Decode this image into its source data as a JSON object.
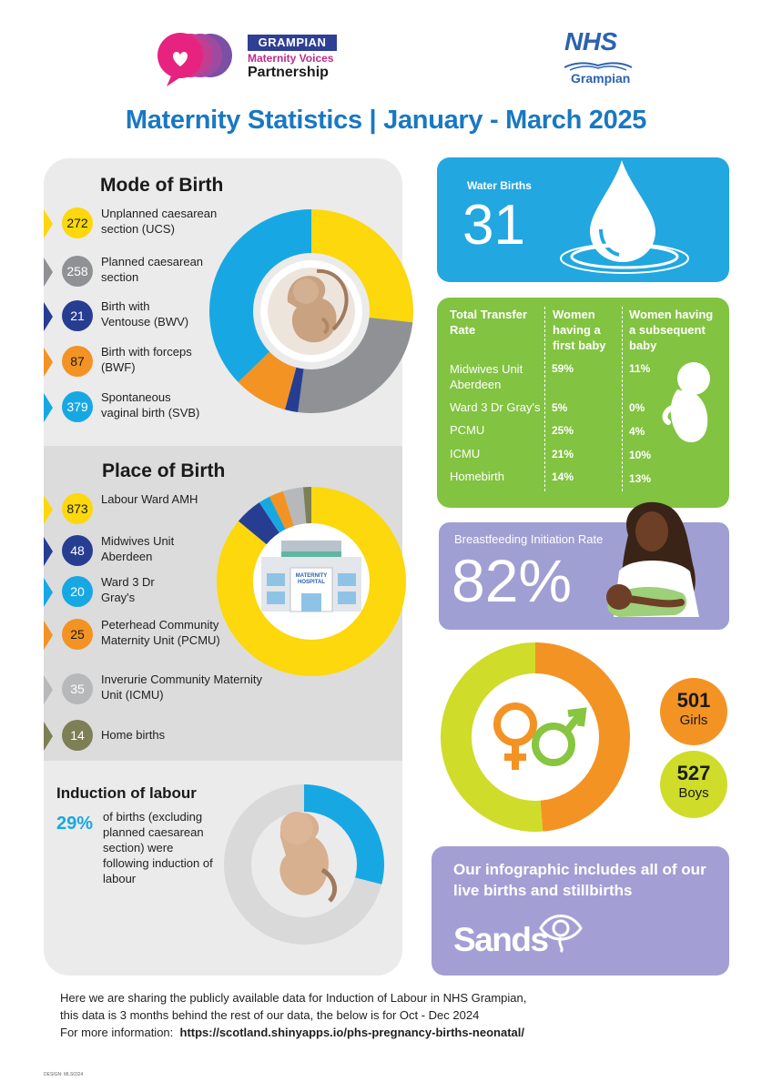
{
  "header": {
    "logo_line1": "GRAMPIAN",
    "logo_line2": "Maternity Voices",
    "logo_line3": "Partnership",
    "nhs_word": "NHS",
    "nhs_region": "Grampian",
    "title": "Maternity Statistics | January - March 2025"
  },
  "mode_of_birth": {
    "title": "Mode of Birth",
    "items": [
      {
        "value": "272",
        "label": "Unplanned caesarean section (UCS)",
        "color": "#fcd80c"
      },
      {
        "value": "258",
        "label": "Planned caesarean section",
        "color": "#8f9194"
      },
      {
        "value": "21",
        "label": "Birth with Ventouse (BWV)",
        "color": "#273d92"
      },
      {
        "value": "87",
        "label": "Birth with forceps (BWF)",
        "color": "#f39324"
      },
      {
        "value": "379",
        "label": "Spontaneous vaginal birth (SVB)",
        "color": "#17a8e3"
      }
    ]
  },
  "place_of_birth": {
    "title": "Place of Birth",
    "hospital_sign": "MATERNITY HOSPITAL",
    "items": [
      {
        "value": "873",
        "label": "Labour Ward AMH",
        "color": "#fcd80c"
      },
      {
        "value": "48",
        "label": "Midwives Unit Aberdeen",
        "color": "#273d92"
      },
      {
        "value": "20",
        "label": "Ward 3 Dr Gray's",
        "color": "#17a8e3"
      },
      {
        "value": "25",
        "label": "Peterhead Community Maternity Unit (PCMU)",
        "color": "#f39324"
      },
      {
        "value": "35",
        "label": "Inverurie Community Maternity Unit (ICMU)",
        "color": "#b7b8ba"
      },
      {
        "value": "14",
        "label": "Home births",
        "color": "#7d7f55"
      }
    ]
  },
  "induction": {
    "title": "Induction of labour",
    "percent": "29%",
    "text": "of births (excluding planned caesarean section) were following induction of labour",
    "rate": 29
  },
  "water_births": {
    "label": "Water Births",
    "value": "31"
  },
  "transfer": {
    "title": "Total Transfer Rate",
    "col1": "Women having a first baby",
    "col2": "Women having a subsequent baby",
    "rows": [
      {
        "unit": "Midwives Unit Aberdeen",
        "first": "59%",
        "subsequent": "11%"
      },
      {
        "unit": "Ward 3 Dr Gray's",
        "first": "5%",
        "subsequent": "0%"
      },
      {
        "unit": "PCMU",
        "first": "25%",
        "subsequent": "4%"
      },
      {
        "unit": "ICMU",
        "first": "21%",
        "subsequent": "10%"
      },
      {
        "unit": "Homebirth",
        "first": "14%",
        "subsequent": "13%"
      }
    ]
  },
  "breastfeeding": {
    "label": "Breastfeeding Initiation Rate",
    "value": "82%"
  },
  "sex": {
    "girls_value": "501",
    "girls_label": "Girls",
    "boys_value": "527",
    "boys_label": "Boys",
    "girls_color": "#f39324",
    "boys_color": "#cfdc2a"
  },
  "sands": {
    "text": "Our infographic includes all of our live births and stillbirths",
    "logo": "Sands"
  },
  "footer": {
    "line1": "Here we are sharing the publicly available data for Induction of Labour in NHS Grampian,",
    "line2": "this data is 3 months behind the rest of our data, the below is for Oct - Dec 2024",
    "line3": "For more information:",
    "link": "https://scotland.shinyapps.io/phs-pregnancy-births-neonatal/",
    "design_code": "DESIGN: MLS0324"
  },
  "chart_data": [
    {
      "type": "pie",
      "title": "Mode of Birth",
      "categories": [
        "Unplanned caesarean section (UCS)",
        "Planned caesarean section",
        "Birth with Ventouse (BWV)",
        "Birth with forceps (BWF)",
        "Spontaneous vaginal birth (SVB)"
      ],
      "values": [
        272,
        258,
        21,
        87,
        379
      ],
      "colors": [
        "#fcd80c",
        "#8f9194",
        "#273d92",
        "#f39324",
        "#17a8e3"
      ]
    },
    {
      "type": "pie",
      "title": "Place of Birth",
      "categories": [
        "Labour Ward AMH",
        "Midwives Unit Aberdeen",
        "Ward 3 Dr Gray's",
        "Peterhead Community Maternity Unit (PCMU)",
        "Inverurie Community Maternity Unit (ICMU)",
        "Home births"
      ],
      "values": [
        873,
        48,
        20,
        25,
        35,
        14
      ],
      "colors": [
        "#fcd80c",
        "#273d92",
        "#17a8e3",
        "#f39324",
        "#b7b8ba",
        "#7d7f55"
      ]
    },
    {
      "type": "pie",
      "title": "Induction of labour",
      "categories": [
        "Induction of labour",
        "Other"
      ],
      "values": [
        29,
        71
      ],
      "colors": [
        "#17a8e3",
        "#d9d9d9"
      ]
    },
    {
      "type": "pie",
      "categories": [
        "Girls",
        "Boys"
      ],
      "values": [
        501,
        527
      ],
      "colors": [
        "#f39324",
        "#cfdc2a"
      ]
    }
  ]
}
